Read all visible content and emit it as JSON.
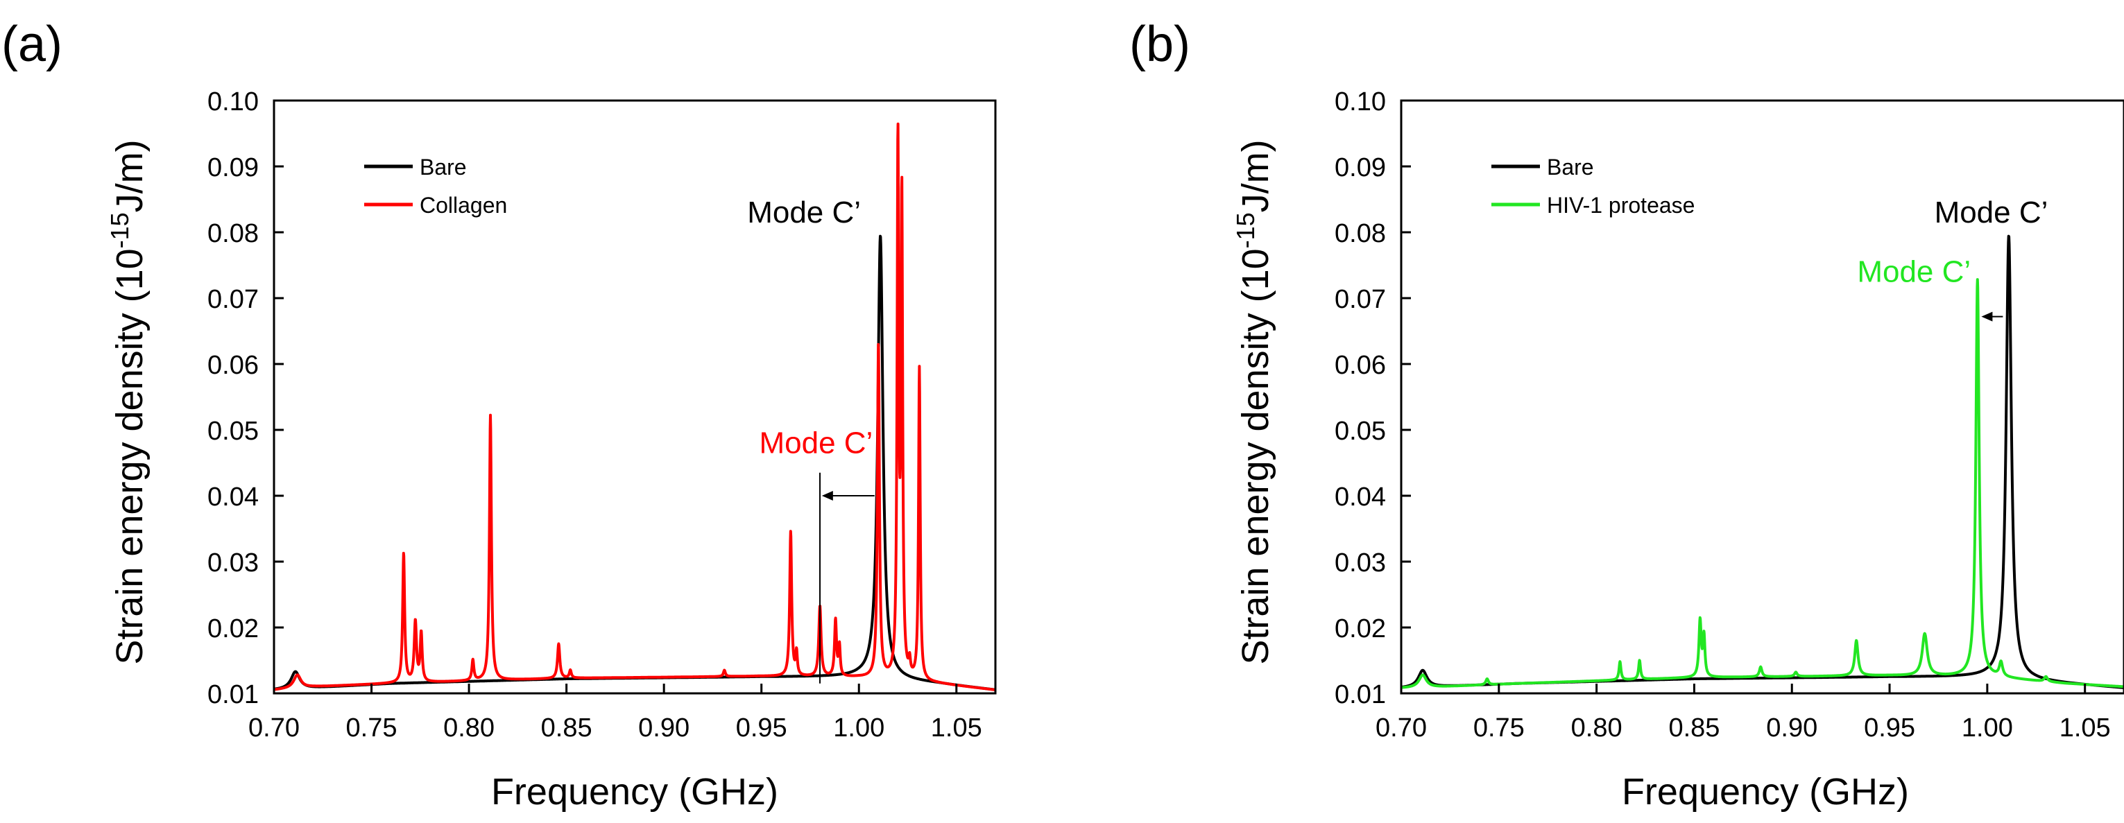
{
  "chart_data": [
    {
      "panel_label": "(a)",
      "type": "line",
      "xlabel": "Frequency (GHz)",
      "ylabel": "Strain energy density (10",
      "ylabel_exp": "-15",
      "ylabel_unit": "J/m)",
      "xlim": [
        0.7,
        1.07
      ],
      "ylim": [
        0.01,
        0.1
      ],
      "xticks": [
        0.7,
        0.75,
        0.8,
        0.85,
        0.9,
        0.95,
        1.0,
        1.05
      ],
      "yticks": [
        0.01,
        0.02,
        0.03,
        0.04,
        0.05,
        0.06,
        0.07,
        0.08,
        0.09,
        0.1
      ],
      "xtick_labels": [
        "0.70",
        "0.75",
        "0.80",
        "0.85",
        "0.90",
        "0.95",
        "1.00",
        "1.05"
      ],
      "ytick_labels": [
        "0.01",
        "0.02",
        "0.03",
        "0.04",
        "0.05",
        "0.06",
        "0.07",
        "0.08",
        "0.09",
        "0.10"
      ],
      "grid": false,
      "legend_position": "top-left",
      "series": [
        {
          "name": "Bare",
          "color": "#000000",
          "baseline": [
            [
              0.7,
              0.0105
            ],
            [
              0.76,
              0.0115
            ],
            [
              0.85,
              0.0122
            ],
            [
              0.95,
              0.0125
            ],
            [
              1.0,
              0.0125
            ],
            [
              1.04,
              0.0115
            ],
            [
              1.07,
              0.0105
            ]
          ],
          "peaks": [
            [
              0.711,
              0.0133,
              0.0026
            ],
            [
              1.011,
              0.0795,
              0.0016
            ]
          ]
        },
        {
          "name": "Collagen",
          "color": "#ff0000",
          "baseline": [
            [
              0.7,
              0.0105
            ],
            [
              0.72,
              0.011
            ],
            [
              0.76,
              0.0115
            ],
            [
              0.85,
              0.0123
            ],
            [
              0.95,
              0.0126
            ],
            [
              1.0,
              0.0124
            ],
            [
              1.04,
              0.0115
            ],
            [
              1.07,
              0.0105
            ]
          ],
          "peaks": [
            [
              0.712,
              0.0128,
              0.0022
            ],
            [
              0.7665,
              0.0312,
              0.0006
            ],
            [
              0.7725,
              0.0208,
              0.0007
            ],
            [
              0.7755,
              0.019,
              0.0006
            ],
            [
              0.802,
              0.015,
              0.0006
            ],
            [
              0.811,
              0.0522,
              0.0006
            ],
            [
              0.846,
              0.0175,
              0.0007
            ],
            [
              0.852,
              0.0135,
              0.0006
            ],
            [
              0.931,
              0.0135,
              0.0006
            ],
            [
              0.965,
              0.0345,
              0.0006
            ],
            [
              0.968,
              0.016,
              0.0005
            ],
            [
              0.98,
              0.0232,
              0.0007
            ],
            [
              0.988,
              0.021,
              0.0006
            ],
            [
              0.99,
              0.017,
              0.0005
            ],
            [
              1.01,
              0.063,
              0.0006
            ],
            [
              1.02,
              0.0925,
              0.0005
            ],
            [
              1.022,
              0.084,
              0.0005
            ],
            [
              1.031,
              0.0592,
              0.0005
            ],
            [
              1.026,
              0.014,
              0.0005
            ]
          ]
        }
      ],
      "annotations": [
        {
          "text": "Mode C’",
          "color": "#000000",
          "x": 1.001,
          "y": 0.0815,
          "anchor": "end"
        },
        {
          "text": "Mode C’",
          "color": "#ff0000",
          "x": 0.978,
          "y": 0.0465,
          "anchor": "middle"
        }
      ],
      "marker_line": {
        "x": 0.98,
        "y_from": 0.0115,
        "y_to": 0.0435
      },
      "arrow": {
        "from": [
          1.008,
          0.04
        ],
        "to": [
          0.981,
          0.04
        ]
      }
    },
    {
      "panel_label": "(b)",
      "type": "line",
      "xlabel": "Frequency (GHz)",
      "ylabel": "Strain energy density (10",
      "ylabel_exp": "-15",
      "ylabel_unit": "J/m)",
      "xlim": [
        0.7,
        1.07
      ],
      "ylim": [
        0.01,
        0.1
      ],
      "xticks": [
        0.7,
        0.75,
        0.8,
        0.85,
        0.9,
        0.95,
        1.0,
        1.05
      ],
      "yticks": [
        0.01,
        0.02,
        0.03,
        0.04,
        0.05,
        0.06,
        0.07,
        0.08,
        0.09,
        0.1
      ],
      "xtick_labels": [
        "0.70",
        "0.75",
        "0.80",
        "0.85",
        "0.90",
        "0.95",
        "1.00",
        "1.05"
      ],
      "ytick_labels": [
        "0.01",
        "0.02",
        "0.03",
        "0.04",
        "0.05",
        "0.06",
        "0.07",
        "0.08",
        "0.09",
        "0.10"
      ],
      "grid": false,
      "legend_position": "top-left",
      "series": [
        {
          "name": "Bare",
          "color": "#000000",
          "baseline": [
            [
              0.7,
              0.0108
            ],
            [
              0.76,
              0.0115
            ],
            [
              0.85,
              0.0122
            ],
            [
              0.95,
              0.0125
            ],
            [
              1.0,
              0.0125
            ],
            [
              1.04,
              0.0115
            ],
            [
              1.07,
              0.0108
            ]
          ],
          "peaks": [
            [
              0.711,
              0.0135,
              0.0026
            ],
            [
              1.011,
              0.0795,
              0.0016
            ]
          ]
        },
        {
          "name": "HIV-1 protease",
          "color": "#22e622",
          "baseline": [
            [
              0.7,
              0.0108
            ],
            [
              0.72,
              0.011
            ],
            [
              0.76,
              0.0115
            ],
            [
              0.85,
              0.0124
            ],
            [
              0.95,
              0.0127
            ],
            [
              1.0,
              0.0125
            ],
            [
              1.04,
              0.0115
            ],
            [
              1.07,
              0.011
            ]
          ],
          "peaks": [
            [
              0.711,
              0.0128,
              0.0022
            ],
            [
              0.744,
              0.0122,
              0.0008
            ],
            [
              0.812,
              0.0148,
              0.0006
            ],
            [
              0.822,
              0.015,
              0.0006
            ],
            [
              0.853,
              0.021,
              0.0007
            ],
            [
              0.855,
              0.0185,
              0.0006
            ],
            [
              0.884,
              0.014,
              0.0008
            ],
            [
              0.902,
              0.0132,
              0.0008
            ],
            [
              0.933,
              0.018,
              0.001
            ],
            [
              0.968,
              0.019,
              0.0015
            ],
            [
              0.995,
              0.0728,
              0.001
            ],
            [
              1.007,
              0.0145,
              0.001
            ],
            [
              1.03,
              0.0125,
              0.001
            ]
          ]
        }
      ],
      "annotations": [
        {
          "text": "Mode C’",
          "color": "#000000",
          "x": 1.002,
          "y": 0.0815,
          "anchor": "middle"
        },
        {
          "text": "Mode C’",
          "color": "#22e622",
          "x": 0.9625,
          "y": 0.0725,
          "anchor": "middle"
        }
      ],
      "marker_line": null,
      "arrow": {
        "from": [
          1.008,
          0.0672
        ],
        "to": [
          0.997,
          0.0672
        ]
      }
    }
  ]
}
